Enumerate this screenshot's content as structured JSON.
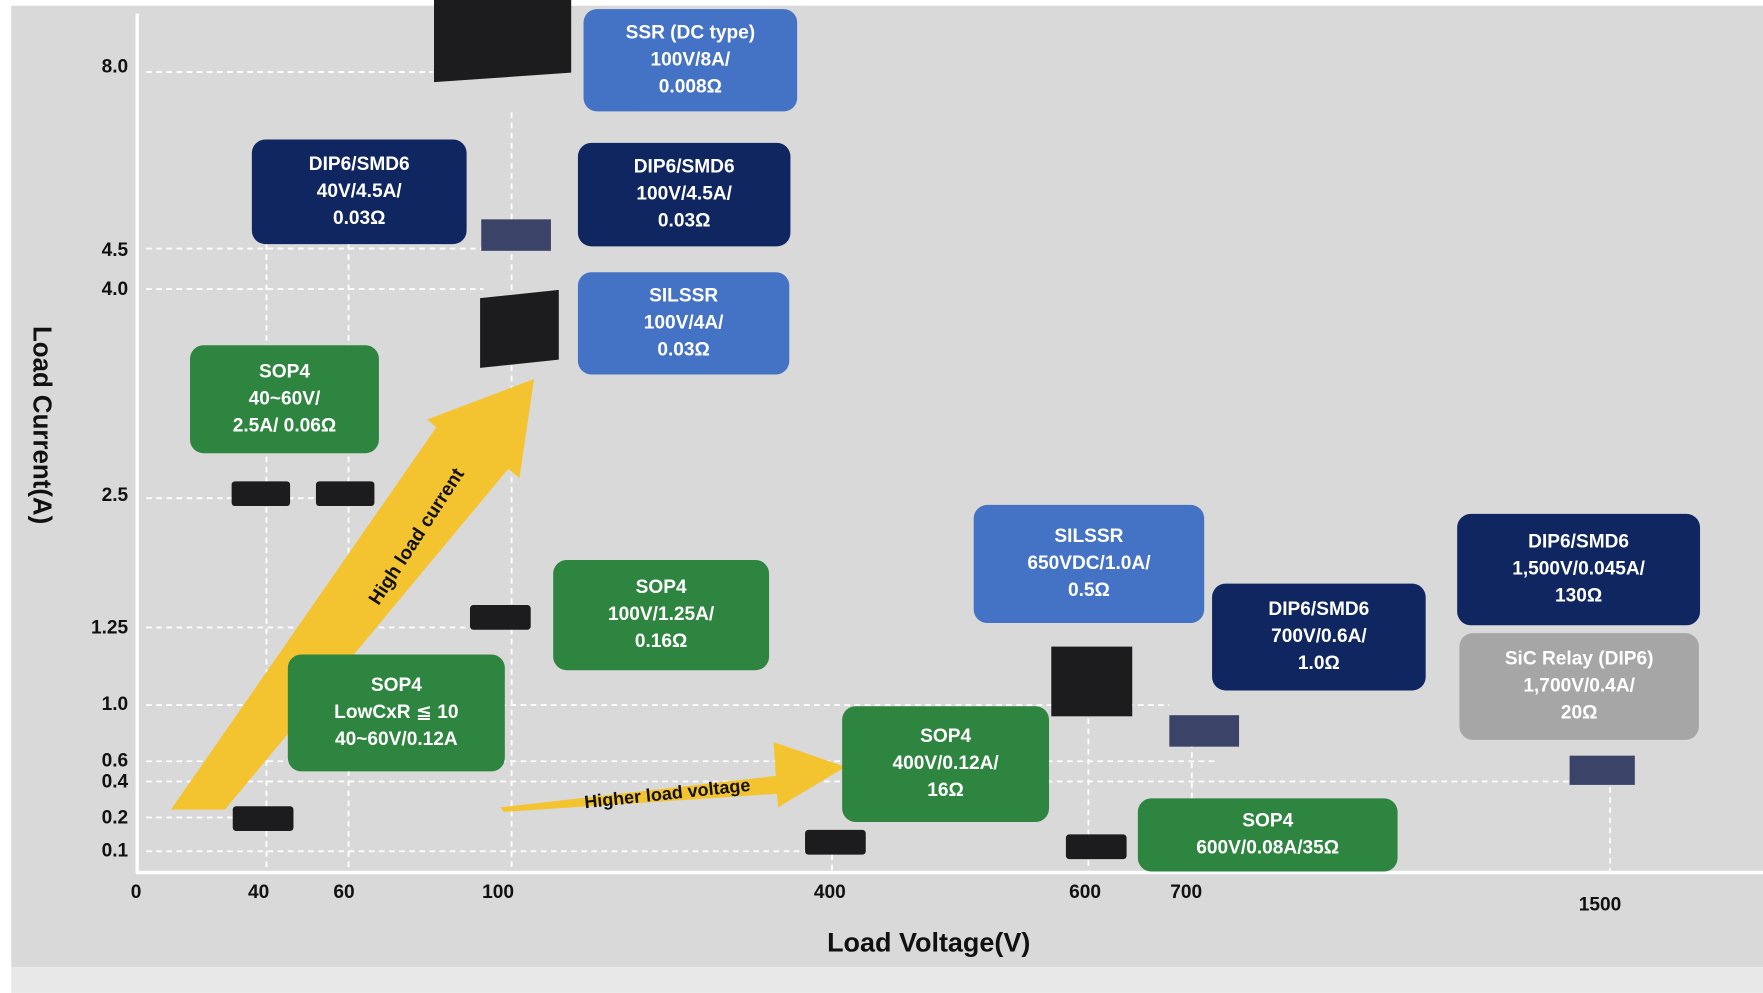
{
  "y_axis": {
    "title": "Load Current(A)",
    "ticks": [
      "8.0",
      "4.5",
      "4.0",
      "2.5",
      "1.25",
      "1.0",
      "0.6",
      "0.4",
      "0.2",
      "0.1"
    ]
  },
  "x_axis": {
    "title": "Load Voltage(V)",
    "ticks": [
      "0",
      "40",
      "60",
      "100",
      "400",
      "600",
      "700",
      "1500"
    ]
  },
  "arrows": [
    "High load current",
    "Higher load voltage"
  ],
  "boxes": [
    {
      "lines": [
        "SSR (DC type)",
        "100V/8A/",
        "0.008Ω"
      ],
      "color": "#4472c4"
    },
    {
      "lines": [
        "DIP6/SMD6",
        "40V/4.5A/",
        "0.03Ω"
      ],
      "color": "#0f2660"
    },
    {
      "lines": [
        "DIP6/SMD6",
        "100V/4.5A/",
        "0.03Ω"
      ],
      "color": "#0f2660"
    },
    {
      "lines": [
        "SILSSR",
        "100V/4A/",
        "0.03Ω"
      ],
      "color": "#4472c4"
    },
    {
      "lines": [
        "SOP4",
        "40~60V/",
        "2.5A/ 0.06Ω"
      ],
      "color": "#2e8540"
    },
    {
      "lines": [
        "SOP4",
        "100V/1.25A/",
        "0.16Ω"
      ],
      "color": "#2e8540"
    },
    {
      "lines": [
        "SOP4",
        "LowCxR ≦ 10",
        "40~60V/0.12A"
      ],
      "color": "#2e8540",
      "line_colors": [
        "#ffff00",
        "#ffff00",
        "#ffffff"
      ]
    },
    {
      "lines": [
        "SOP4",
        "400V/0.12A/",
        "16Ω"
      ],
      "color": "#2e8540"
    },
    {
      "lines": [
        "SILSSR",
        "650VDC/1.0A/",
        "0.5Ω"
      ],
      "color": "#4472c4"
    },
    {
      "lines": [
        "DIP6/SMD6",
        "700V/0.6A/",
        "1.0Ω"
      ],
      "color": "#0f2660"
    },
    {
      "lines": [
        "DIP6/SMD6",
        "1,500V/0.045A/",
        "130Ω"
      ],
      "color": "#0f2660"
    },
    {
      "lines": [
        "SiC Relay (DIP6)",
        "1,700V/0.4A/",
        "20Ω"
      ],
      "color": "#a6a6a6"
    },
    {
      "lines": [
        "SOP4",
        "600V/0.08A/35Ω"
      ],
      "color": "#2e8540"
    }
  ]
}
